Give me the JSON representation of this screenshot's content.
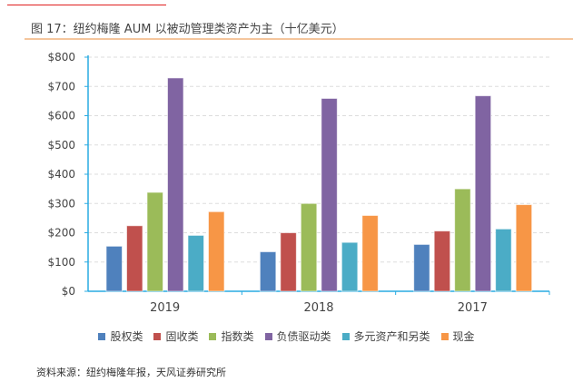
{
  "title": "图 17：纽约梅隆 AUM 以被动管理类资产为主（十亿美元）",
  "source": "资料来源：纽约梅隆年报，天风证券研究所",
  "chart_data": {
    "type": "bar",
    "title": "图 17：纽约梅隆 AUM 以被动管理类资产为主（十亿美元）",
    "categories": [
      "2019",
      "2018",
      "2017"
    ],
    "yticks": [
      "$0",
      "$100",
      "$200",
      "$300",
      "$400",
      "$500",
      "$600",
      "$700",
      "$800"
    ],
    "ylim": [
      0,
      800
    ],
    "grid": true,
    "legend": "bottom",
    "series": [
      {
        "name": "股权类",
        "color": "#4f81bd",
        "values": [
          154,
          135,
          160
        ]
      },
      {
        "name": "固收类",
        "color": "#c0504d",
        "values": [
          224,
          200,
          206
        ]
      },
      {
        "name": "指数类",
        "color": "#9bbb59",
        "values": [
          338,
          300,
          350
        ]
      },
      {
        "name": "负债驱动类",
        "color": "#8064a2",
        "values": [
          729,
          659,
          668
        ]
      },
      {
        "name": "多元资产和另类",
        "color": "#4bacc6",
        "values": [
          191,
          167,
          213
        ]
      },
      {
        "name": "现金",
        "color": "#f79646",
        "values": [
          272,
          259,
          296
        ]
      }
    ]
  }
}
